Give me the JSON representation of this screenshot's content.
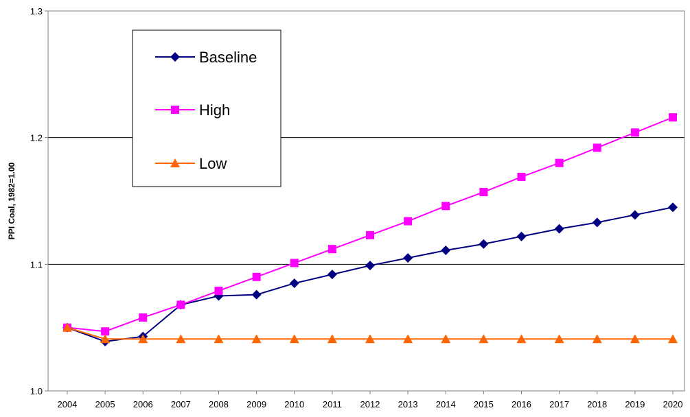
{
  "chart_data": {
    "type": "line",
    "title": "",
    "xlabel": "",
    "ylabel": "PPI Coal, 1982=1.00",
    "ylim": [
      1.0,
      1.3
    ],
    "y_ticks": [
      "1.0",
      "1.1",
      "1.2",
      "1.3"
    ],
    "grid": "horizontal",
    "legend_position": "top-left",
    "x": [
      "2004",
      "2005",
      "2006",
      "2007",
      "2008",
      "2009",
      "2010",
      "2011",
      "2012",
      "2013",
      "2014",
      "2015",
      "2016",
      "2017",
      "2018",
      "2019",
      "2020"
    ],
    "series": [
      {
        "name": "Baseline",
        "color": "#000080",
        "marker": "diamond",
        "values": [
          1.05,
          1.039,
          1.043,
          1.068,
          1.075,
          1.076,
          1.085,
          1.092,
          1.099,
          1.105,
          1.111,
          1.116,
          1.122,
          1.128,
          1.133,
          1.139,
          1.145
        ]
      },
      {
        "name": "High",
        "color": "#FF00FF",
        "marker": "square",
        "values": [
          1.05,
          1.047,
          1.058,
          1.068,
          1.079,
          1.09,
          1.101,
          1.112,
          1.123,
          1.134,
          1.146,
          1.157,
          1.169,
          1.18,
          1.192,
          1.204,
          1.216
        ]
      },
      {
        "name": "Low",
        "color": "#FF6600",
        "marker": "triangle",
        "values": [
          1.05,
          1.041,
          1.041,
          1.041,
          1.041,
          1.041,
          1.041,
          1.041,
          1.041,
          1.041,
          1.041,
          1.041,
          1.041,
          1.041,
          1.041,
          1.041,
          1.041
        ]
      }
    ]
  }
}
